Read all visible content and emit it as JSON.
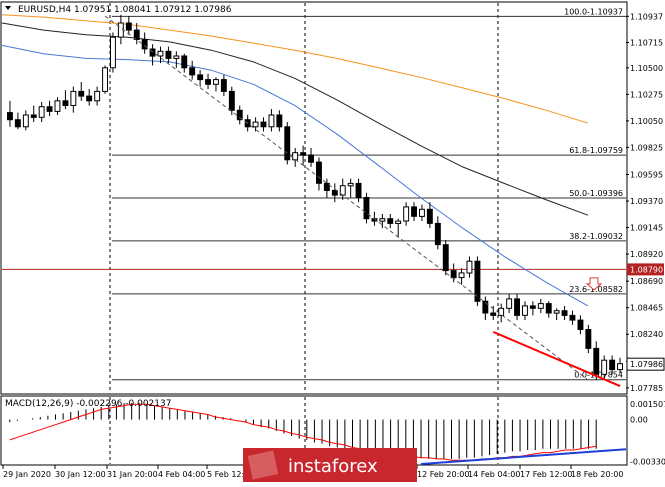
{
  "chart_data": [
    {
      "type": "candlestick",
      "header": "EURUSD,H4  1.07951 1.08041 1.07912 1.07986",
      "x_ticks": [
        "29 Jan 2020",
        "30 Jan 12:00",
        "31 Jan 20:00",
        "4 Feb 04:00",
        "5 Feb 12:00",
        "6 Feb 20:00",
        "10 Feb 04:00",
        "11 Feb 12:00",
        "12 Feb 20:00",
        "14 Feb 04:00",
        "17 Feb 12:00",
        "18 Feb 20:00"
      ],
      "y_ticks": [
        "1.10937",
        "1.10715",
        "1.10500",
        "1.10275",
        "1.10050",
        "1.09825",
        "1.09595",
        "1.09370",
        "1.09145",
        "1.08920",
        "1.08690",
        "1.08465",
        "1.08240",
        "1.08010",
        "1.07785"
      ],
      "ylim": [
        1.0775,
        1.1105
      ],
      "current_price": "1.07986",
      "current_price_value": 1.07986,
      "level_line": {
        "label": "1.08790",
        "value": 1.0879,
        "color": "#b22222"
      },
      "fibonacci": [
        {
          "label": "100.0-1.10937",
          "value": 1.10937
        },
        {
          "label": "61.8-1.09759",
          "value": 1.09759
        },
        {
          "label": "50.0-1.09396",
          "value": 1.09396
        },
        {
          "label": "38.2-1.09032",
          "value": 1.09032
        },
        {
          "label": "23.6-1.08582",
          "value": 1.08582
        },
        {
          "label": "0.0-1.07854",
          "value": 1.07854
        }
      ],
      "candles": [
        [
          1.1012,
          1.1022,
          1.1,
          1.1006
        ],
        [
          1.1006,
          1.1012,
          1.0998,
          1.1
        ],
        [
          1.1,
          1.1014,
          1.0997,
          1.101
        ],
        [
          1.101,
          1.1018,
          1.1004,
          1.1008
        ],
        [
          1.1008,
          1.1021,
          1.1004,
          1.1017
        ],
        [
          1.1017,
          1.1022,
          1.1009,
          1.1013
        ],
        [
          1.1013,
          1.1025,
          1.101,
          1.1022
        ],
        [
          1.1022,
          1.1031,
          1.1015,
          1.1018
        ],
        [
          1.1018,
          1.1034,
          1.1012,
          1.103
        ],
        [
          1.103,
          1.1038,
          1.1022,
          1.1026
        ],
        [
          1.1026,
          1.1032,
          1.1018,
          1.1022
        ],
        [
          1.1022,
          1.1034,
          1.1018,
          1.103
        ],
        [
          1.103,
          1.1052,
          1.1028,
          1.105
        ],
        [
          1.105,
          1.108,
          1.1046,
          1.1076
        ],
        [
          1.1076,
          1.1095,
          1.107,
          1.1088
        ],
        [
          1.1088,
          1.1094,
          1.1078,
          1.1082
        ],
        [
          1.1082,
          1.1088,
          1.107,
          1.1074
        ],
        [
          1.1074,
          1.108,
          1.1062,
          1.1066
        ],
        [
          1.1066,
          1.107,
          1.1052,
          1.106
        ],
        [
          1.106,
          1.1068,
          1.1054,
          1.1064
        ],
        [
          1.1064,
          1.1068,
          1.1054,
          1.1058
        ],
        [
          1.1058,
          1.1064,
          1.105,
          1.106
        ],
        [
          1.106,
          1.1062,
          1.1046,
          1.105
        ],
        [
          1.105,
          1.1056,
          1.104,
          1.1044
        ],
        [
          1.1044,
          1.1048,
          1.1034,
          1.104
        ],
        [
          1.104,
          1.1045,
          1.1032,
          1.1036
        ],
        [
          1.1036,
          1.1042,
          1.103,
          1.104
        ],
        [
          1.104,
          1.1044,
          1.1026,
          1.103
        ],
        [
          1.103,
          1.1034,
          1.101,
          1.1014
        ],
        [
          1.1014,
          1.1018,
          1.1002,
          1.1006
        ],
        [
          1.1006,
          1.101,
          1.0996,
          1.1
        ],
        [
          1.1,
          1.1008,
          1.0996,
          1.1004
        ],
        [
          1.1004,
          1.1008,
          1.0996,
          1.1
        ],
        [
          1.1,
          1.1015,
          1.0996,
          1.101
        ],
        [
          1.101,
          1.1014,
          1.0996,
          1.1
        ],
        [
          1.1,
          1.1004,
          1.0968,
          1.0972
        ],
        [
          1.0972,
          1.0982,
          1.0966,
          1.0978
        ],
        [
          1.0978,
          1.0984,
          1.0968,
          1.0976
        ],
        [
          1.0976,
          1.0982,
          1.0966,
          1.097
        ],
        [
          1.097,
          1.0974,
          1.0946,
          1.0952
        ],
        [
          1.0952,
          1.0956,
          1.094,
          1.0946
        ],
        [
          1.0946,
          1.0952,
          1.0936,
          1.0942
        ],
        [
          1.0942,
          1.0956,
          1.0938,
          1.095
        ],
        [
          1.095,
          1.0956,
          1.094,
          1.0952
        ],
        [
          1.0952,
          1.0956,
          1.0936,
          1.094
        ],
        [
          1.094,
          1.0944,
          1.0918,
          1.0922
        ],
        [
          1.0922,
          1.0928,
          1.0916,
          1.092
        ],
        [
          1.092,
          1.0926,
          1.0914,
          1.0922
        ],
        [
          1.0922,
          1.0926,
          1.0914,
          1.0918
        ],
        [
          1.0918,
          1.0922,
          1.0906,
          1.092
        ],
        [
          1.092,
          1.0936,
          1.0916,
          1.0932
        ],
        [
          1.0932,
          1.0936,
          1.092,
          1.0924
        ],
        [
          1.0924,
          1.0934,
          1.092,
          1.093
        ],
        [
          1.093,
          1.0936,
          1.0914,
          1.0918
        ],
        [
          1.0918,
          1.0924,
          1.0896,
          1.09
        ],
        [
          1.09,
          1.0904,
          1.0874,
          1.0878
        ],
        [
          1.0878,
          1.0884,
          1.0868,
          1.0872
        ],
        [
          1.0872,
          1.088,
          1.0866,
          1.0876
        ],
        [
          1.0876,
          1.089,
          1.0872,
          1.0886
        ],
        [
          1.0886,
          1.089,
          1.0848,
          1.0852
        ],
        [
          1.0852,
          1.0856,
          1.0836,
          1.0842
        ],
        [
          1.0842,
          1.0848,
          1.0836,
          1.084
        ],
        [
          1.084,
          1.085,
          1.0834,
          1.0846
        ],
        [
          1.0846,
          1.0858,
          1.0842,
          1.0854
        ],
        [
          1.0854,
          1.0858,
          1.0836,
          1.084
        ],
        [
          1.084,
          1.0852,
          1.0836,
          1.0848
        ],
        [
          1.0848,
          1.0852,
          1.084,
          1.0846
        ],
        [
          1.0846,
          1.0854,
          1.0842,
          1.085
        ],
        [
          1.085,
          1.0852,
          1.0838,
          1.0842
        ],
        [
          1.0842,
          1.0846,
          1.0836,
          1.0844
        ],
        [
          1.0844,
          1.0848,
          1.0836,
          1.084
        ],
        [
          1.084,
          1.0844,
          1.0832,
          1.0836
        ],
        [
          1.0836,
          1.084,
          1.0824,
          1.0828
        ],
        [
          1.0828,
          1.0832,
          1.0808,
          1.0812
        ],
        [
          1.0812,
          1.0818,
          1.0785,
          1.079
        ],
        [
          1.079,
          1.0806,
          1.0786,
          1.0802
        ],
        [
          1.0802,
          1.0806,
          1.079,
          1.0794
        ],
        [
          1.0794,
          1.0804,
          1.0791,
          1.0799
        ]
      ],
      "moving_averages": [
        {
          "color": "#f7931e",
          "values": [
            1.1095,
            1.1093,
            1.109,
            1.1087,
            1.1082,
            1.1077,
            1.1071,
            1.1065,
            1.1058,
            1.105,
            1.1042,
            1.1033,
            1.1024,
            1.1014,
            1.1003
          ]
        },
        {
          "color": "#222222",
          "values": [
            1.1088,
            1.1082,
            1.1078,
            1.1076,
            1.1072,
            1.1065,
            1.1055,
            1.1041,
            1.1023,
            1.1003,
            1.0984,
            1.0966,
            1.0952,
            1.0938,
            1.0925
          ]
        },
        {
          "color": "#4a78d6",
          "values": [
            1.1069,
            1.1062,
            1.1058,
            1.1057,
            1.1055,
            1.1048,
            1.1036,
            1.1018,
            1.0994,
            1.0967,
            1.094,
            1.0914,
            1.089,
            1.0868,
            1.0848
          ]
        }
      ],
      "ma_x_fraction": [
        0.0,
        0.071,
        0.143,
        0.214,
        0.286,
        0.357,
        0.429,
        0.5,
        0.571,
        0.643,
        0.714,
        0.786,
        0.857,
        0.929,
        1.0
      ],
      "dashed_trendline": {
        "from": [
          12,
          1.1094
        ],
        "to": [
          73,
          1.0785
        ]
      },
      "red_trendline": {
        "from": [
          61,
          1.0826
        ],
        "to": [
          77,
          1.078
        ]
      }
    },
    {
      "type": "macd",
      "label": "MACD(12,26,9) -0.002296 -0.002137",
      "y_ticks": [
        "0.001507",
        "0.00",
        "-0.003307"
      ],
      "ylim": [
        -0.0035,
        0.0017
      ],
      "histogram": [
        -0.0002,
        -0.0001,
        0.0,
        0.0001,
        0.0002,
        0.0003,
        0.0004,
        0.0005,
        0.0006,
        0.0007,
        0.0008,
        0.0009,
        0.001,
        0.0011,
        0.0012,
        0.0013,
        0.0013,
        0.0013,
        0.0012,
        0.0011,
        0.001,
        0.0009,
        0.0008,
        0.0007,
        0.0006,
        0.0005,
        0.0004,
        0.0003,
        0.0002,
        0.0001,
        0.0,
        -0.0002,
        -0.0004,
        -0.0006,
        -0.0007,
        -0.0009,
        -0.0011,
        -0.0013,
        -0.0015,
        -0.0016,
        -0.0018,
        -0.0019,
        -0.0021,
        -0.0022,
        -0.0023,
        -0.0024,
        -0.0025,
        -0.0026,
        -0.0027,
        -0.0028,
        -0.0028,
        -0.0029,
        -0.0029,
        -0.003,
        -0.003,
        -0.0031,
        -0.0031,
        -0.0031,
        -0.0031,
        -0.0031,
        -0.003,
        -0.003,
        -0.0029,
        -0.0028,
        -0.0027,
        -0.0026,
        -0.0025,
        -0.0025,
        -0.0024,
        -0.0024,
        -0.0023,
        -0.0023,
        -0.0023,
        -0.0023,
        -0.0023,
        -0.0023,
        -0.0023,
        -0.0023
      ],
      "signal": [
        -0.0016,
        -0.0014,
        -0.0012,
        -0.001,
        -0.0008,
        -0.0006,
        -0.0004,
        -0.0002,
        0.0,
        0.0002,
        0.0004,
        0.0006,
        0.0008,
        0.0009,
        0.001,
        0.0011,
        0.0012,
        0.0012,
        0.0012,
        0.0011,
        0.001,
        0.0009,
        0.0008,
        0.0007,
        0.0006,
        0.0005,
        0.0004,
        0.0002,
        0.0001,
        0.0,
        -0.0001,
        -0.0002,
        -0.0004,
        -0.0005,
        -0.0006,
        -0.0008,
        -0.0009,
        -0.0011,
        -0.0012,
        -0.0014,
        -0.0015,
        -0.0016,
        -0.0018,
        -0.0019,
        -0.002,
        -0.0022,
        -0.0023,
        -0.0024,
        -0.0025,
        -0.0026,
        -0.0027,
        -0.0028,
        -0.0028,
        -0.0029,
        -0.003,
        -0.003,
        -0.0031,
        -0.0031,
        -0.0032,
        -0.0032,
        -0.0032,
        -0.0032,
        -0.0031,
        -0.0031,
        -0.003,
        -0.003,
        -0.0029,
        -0.0029,
        -0.0028,
        -0.0027,
        -0.0026,
        -0.0026,
        -0.0025,
        -0.0024,
        -0.0024,
        -0.0023,
        -0.0022,
        -0.0021
      ],
      "blue_trendline": {
        "from": [
          54,
          -0.0035
        ],
        "to": [
          77,
          -0.0025
        ]
      }
    }
  ],
  "watermark": "instaforex",
  "colors": {
    "bull": "#ffffff",
    "bear": "#000000",
    "fib": "#333333",
    "grid": "#000000",
    "trend_red": "#ff0000",
    "macd_signal": "#ff0000",
    "macd_trend_blue": "#1e3fd8",
    "price_tag_bg": "#ffffff",
    "level_tag_bg": "#b22222",
    "arrow": "#e03c3c"
  }
}
